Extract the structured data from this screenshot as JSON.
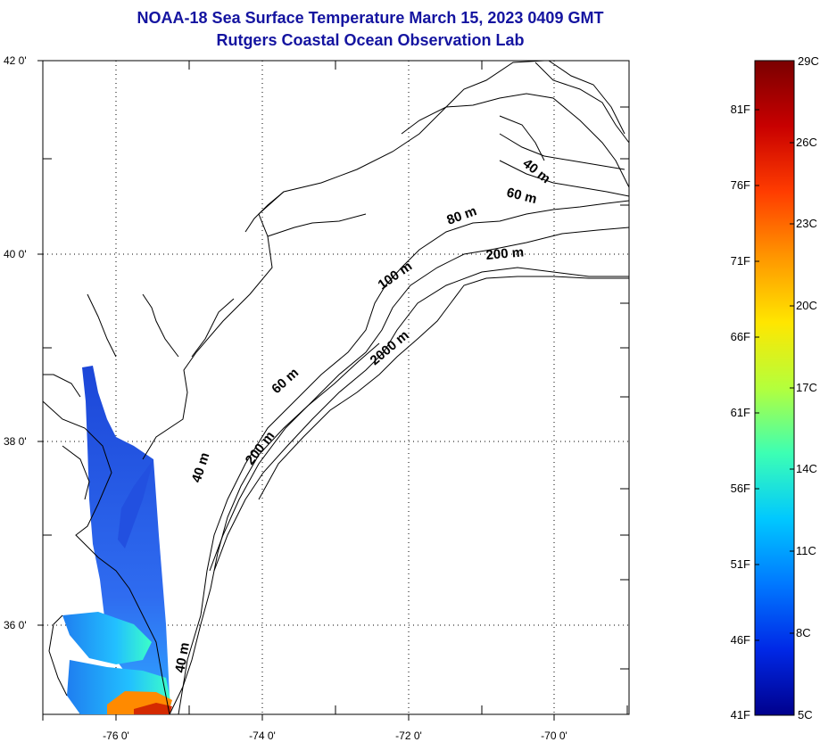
{
  "title": {
    "line1": "NOAA-18 Sea Surface Temperature March 15, 2023 0409 GMT",
    "line2": "Rutgers Coastal Ocean Observation Lab"
  },
  "map": {
    "lat_labels": [
      "42 0'",
      "40 0'",
      "38 0'",
      "36 0'"
    ],
    "lon_labels": [
      "-76 0'",
      "-74 0'",
      "-72 0'",
      "-70 0'"
    ],
    "isobath_labels": [
      "40 m",
      "60 m",
      "80 m",
      "200 m",
      "100 m",
      "2000 m",
      "60 m",
      "200 m",
      "40 m",
      "40 m"
    ]
  },
  "colorbar": {
    "fahrenheit_labels": [
      "81F",
      "76F",
      "71F",
      "66F",
      "61F",
      "56F",
      "51F",
      "46F",
      "41F"
    ],
    "celsius_labels": [
      "29C",
      "26C",
      "23C",
      "20C",
      "17C",
      "14C",
      "11C",
      "8C",
      "5C"
    ],
    "colors": [
      "#7a0000",
      "#c80000",
      "#ff3c00",
      "#ff9600",
      "#ffe600",
      "#b4ff3c",
      "#3cffb4",
      "#00c8ff",
      "#0078ff",
      "#0028e6",
      "#00008c"
    ]
  }
}
